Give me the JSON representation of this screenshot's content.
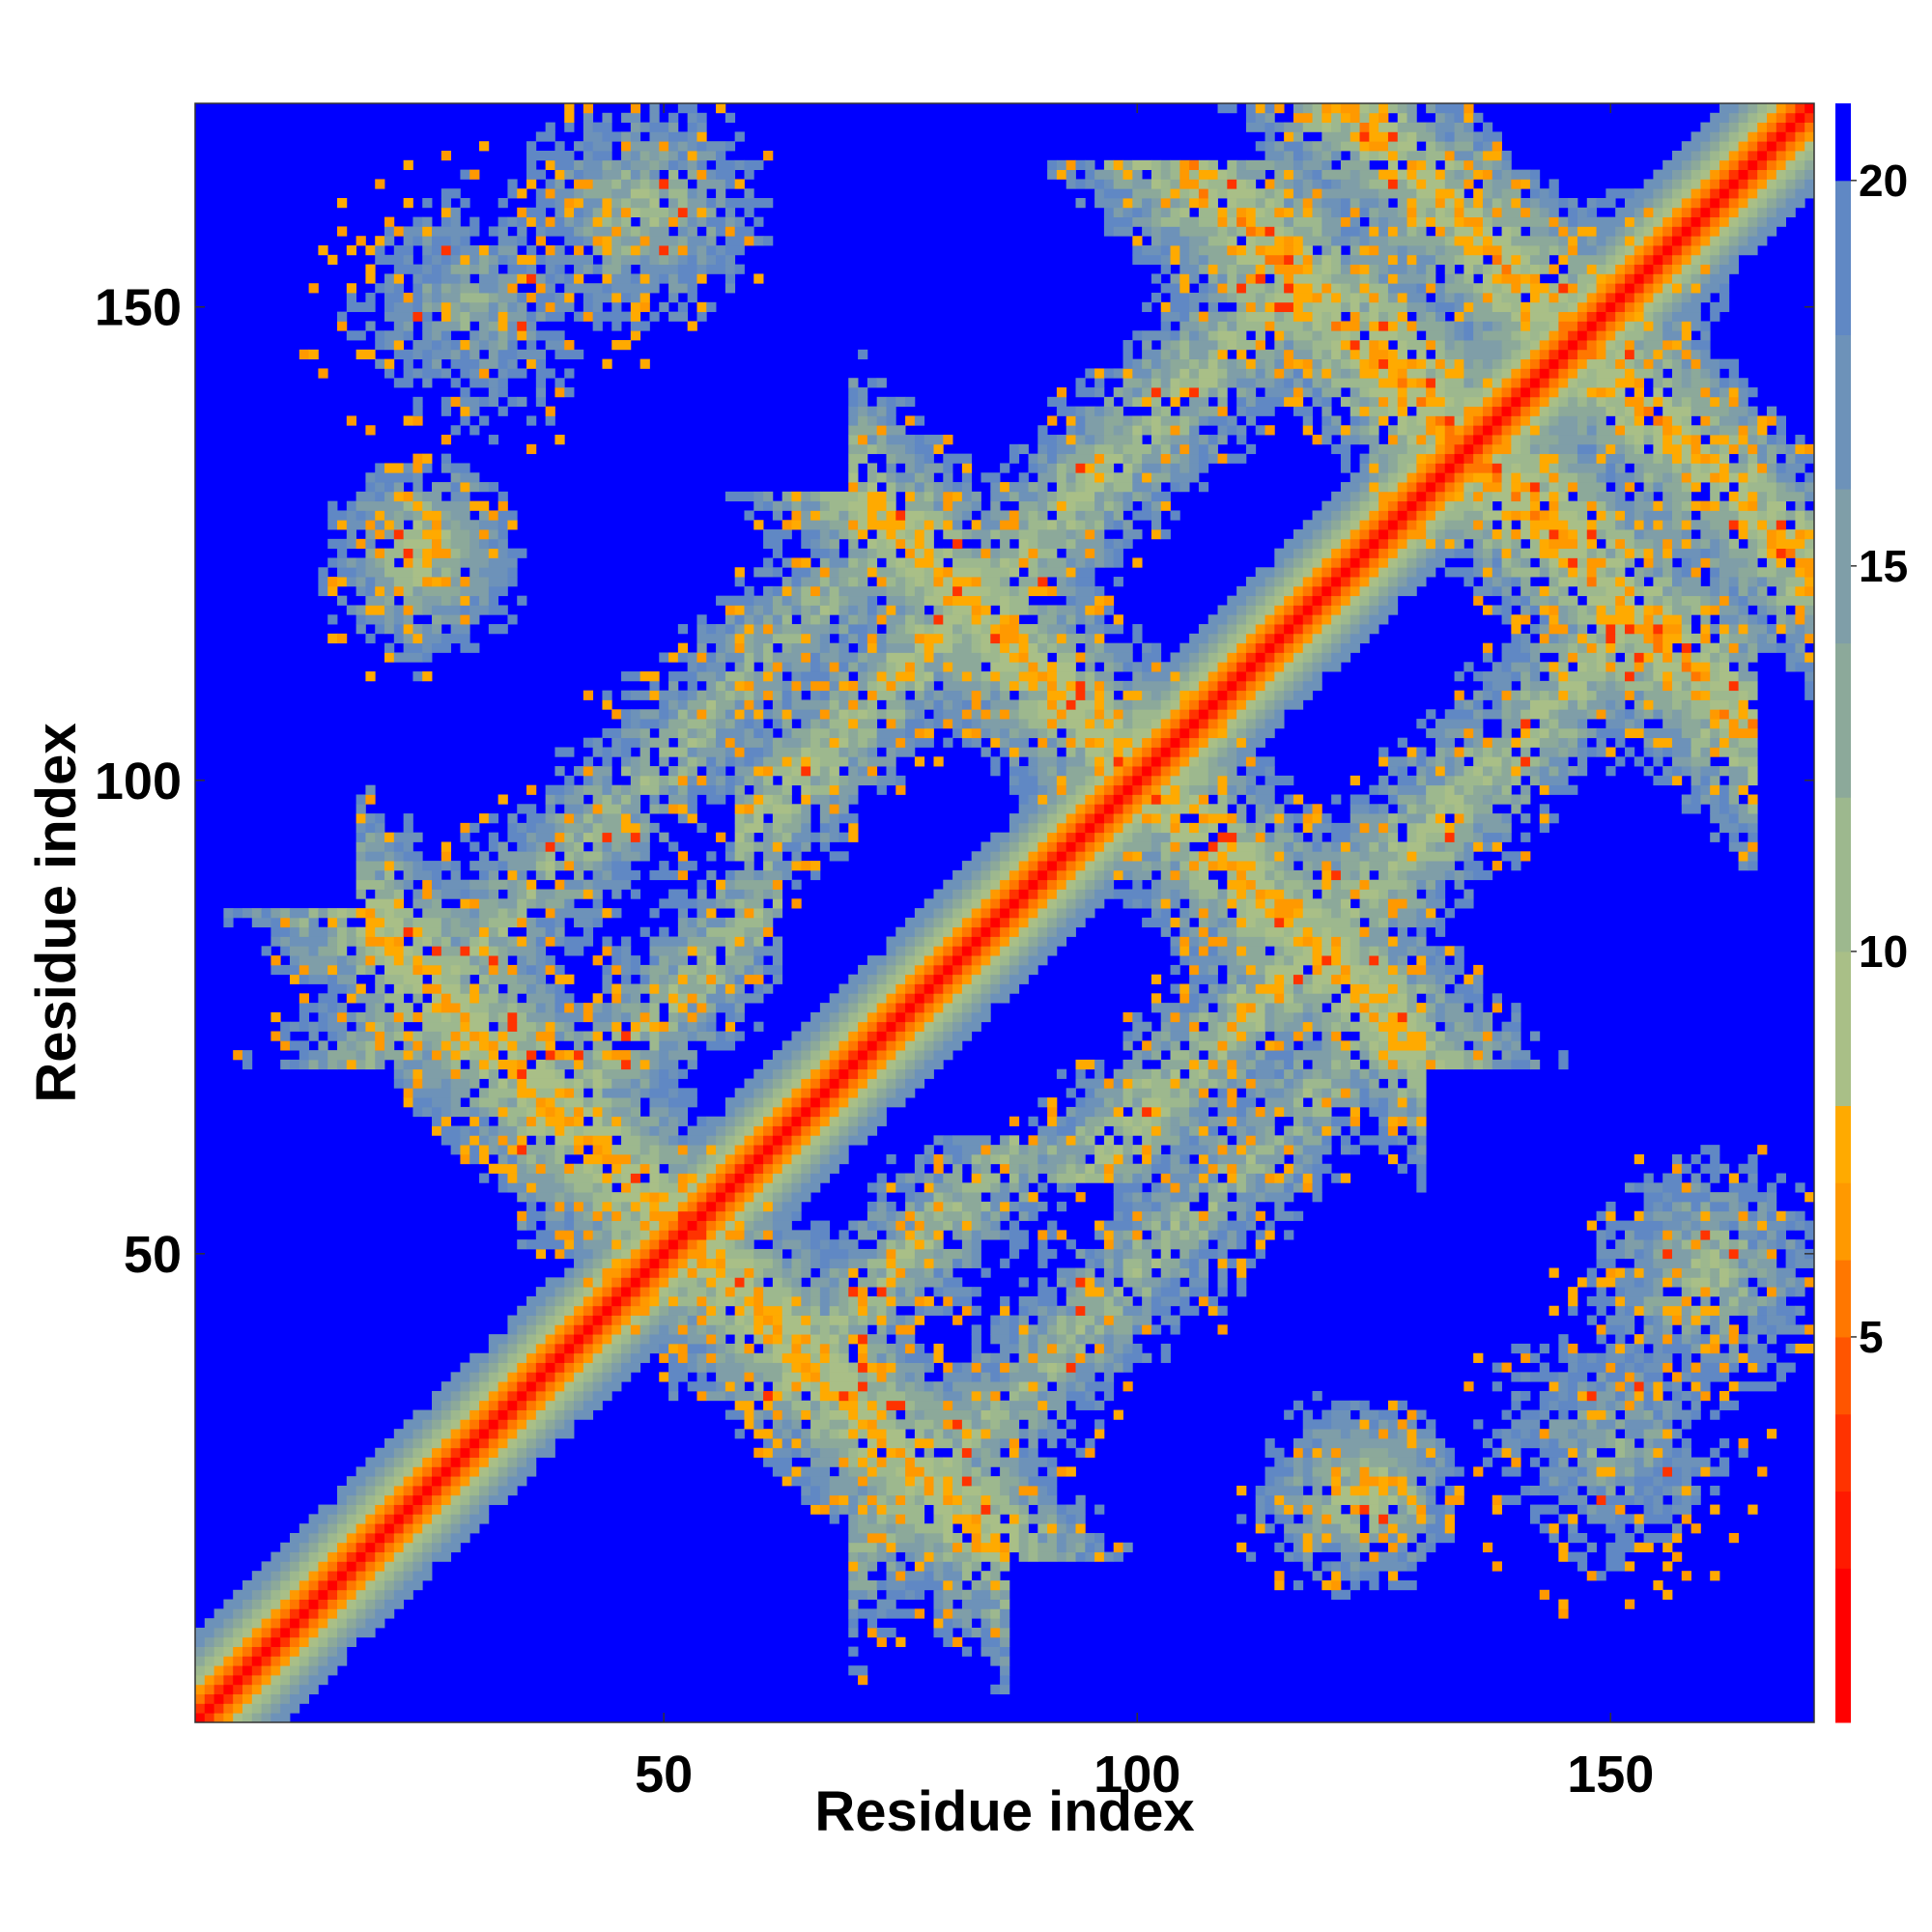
{
  "chart_data": {
    "type": "heatmap",
    "title": "",
    "xlabel": "Residue index",
    "ylabel": "Residue index",
    "n_residues": 171,
    "xlim": [
      1,
      171
    ],
    "ylim": [
      1,
      171
    ],
    "x_ticks": [
      50,
      100,
      150
    ],
    "y_ticks": [
      50,
      100,
      150
    ],
    "x_tick_labels": [
      "50",
      "100",
      "150"
    ],
    "y_tick_labels": [
      "50",
      "100",
      "150"
    ],
    "colorbar": {
      "range": [
        0,
        21
      ],
      "ticks": [
        5,
        10,
        15,
        20
      ],
      "tick_labels": [
        "5",
        "10",
        "15",
        "20"
      ],
      "placement": "right",
      "bands": [
        {
          "from": 0,
          "to": 2,
          "color": "#ff0000"
        },
        {
          "from": 2,
          "to": 3,
          "color": "#ff1a00"
        },
        {
          "from": 3,
          "to": 4,
          "color": "#ff3300"
        },
        {
          "from": 4,
          "to": 5,
          "color": "#ff5500"
        },
        {
          "from": 5,
          "to": 6,
          "color": "#ff7700"
        },
        {
          "from": 6,
          "to": 7,
          "color": "#ff9900"
        },
        {
          "from": 7,
          "to": 8,
          "color": "#ffaa00"
        },
        {
          "from": 8,
          "to": 10,
          "color": "#a9bf87"
        },
        {
          "from": 10,
          "to": 12,
          "color": "#9db88e"
        },
        {
          "from": 12,
          "to": 14,
          "color": "#8ca99a"
        },
        {
          "from": 14,
          "to": 16,
          "color": "#7f9ea8"
        },
        {
          "from": 16,
          "to": 18,
          "color": "#6d92b9"
        },
        {
          "from": 18,
          "to": 20,
          "color": "#6088c4"
        },
        {
          "from": 20,
          "to": 21,
          "color": "#0000ff"
        }
      ]
    },
    "background_color": "#0000ff",
    "contact_bands": [
      {
        "kind": "anti",
        "center_sum": 104,
        "from_x": 18,
        "to_x": 86,
        "width": 7,
        "value": 9
      },
      {
        "kind": "anti",
        "center_sum": 201,
        "from_x": 70,
        "to_x": 130,
        "width": 7,
        "value": 9
      },
      {
        "kind": "parallel",
        "offset": 26,
        "from_x": 35,
        "to_x": 62,
        "width": 6,
        "value": 11
      },
      {
        "kind": "parallel",
        "offset": 36,
        "from_x": 58,
        "to_x": 118,
        "width": 6,
        "value": 10
      },
      {
        "kind": "parallel",
        "offset": -52,
        "from_x": 70,
        "to_x": 123,
        "width": 7,
        "value": 12
      },
      {
        "kind": "anti",
        "center_sum": 270,
        "from_x": 125,
        "to_x": 165,
        "width": 7,
        "value": 8
      },
      {
        "kind": "anti",
        "center_sum": 293,
        "from_x": 135,
        "to_x": 171,
        "width": 6,
        "value": 8
      },
      {
        "kind": "blob",
        "cx": 30,
        "cy": 150,
        "r": 12,
        "value": 13
      },
      {
        "kind": "blob",
        "cx": 24,
        "cy": 122,
        "r": 8,
        "value": 11
      },
      {
        "kind": "blob",
        "cx": 145,
        "cy": 148,
        "r": 10,
        "value": 9
      },
      {
        "kind": "blob",
        "cx": 160,
        "cy": 48,
        "r": 9,
        "value": 10
      },
      {
        "kind": "blob",
        "cx": 125,
        "cy": 25,
        "r": 6,
        "value": 8
      }
    ]
  }
}
